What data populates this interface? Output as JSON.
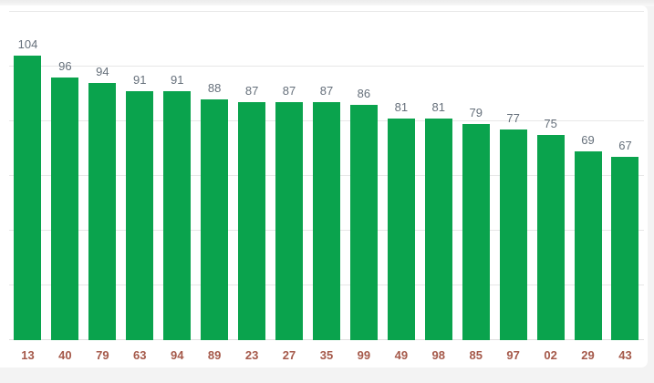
{
  "chart_data": {
    "type": "bar",
    "categories": [
      "13",
      "40",
      "79",
      "63",
      "94",
      "89",
      "23",
      "27",
      "35",
      "99",
      "49",
      "98",
      "85",
      "97",
      "02",
      "29",
      "43"
    ],
    "values": [
      104,
      96,
      94,
      91,
      91,
      88,
      87,
      87,
      87,
      86,
      81,
      81,
      79,
      77,
      75,
      69,
      67
    ],
    "title": "",
    "xlabel": "",
    "ylabel": "",
    "ylim": [
      0,
      120
    ],
    "gridlines": [
      0,
      20,
      40,
      60,
      80,
      100,
      120
    ],
    "grid": true,
    "legend": "none",
    "annotations": "value labels shown above each bar; category labels below axis"
  },
  "colors": {
    "bar": "#0aa34d",
    "value_label": "#66707b",
    "category_label": "#a5594a",
    "gridline": "#e7e7e7",
    "baseline": "#dedede",
    "card_bg": "#ffffff",
    "page_bg": "#f3f3f3"
  }
}
